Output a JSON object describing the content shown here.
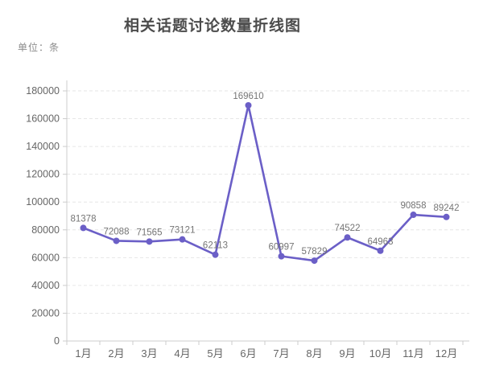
{
  "header": {
    "title": "相关话题讨论数量折线图",
    "unit_label": "单位：条"
  },
  "colors": {
    "line": "#6b5fc7",
    "marker": "#6b5fc7",
    "title_text": "#4c4c4c",
    "unit_text": "#8c8c8c",
    "axis_line": "#cccccc",
    "tick_text": "#666666",
    "grid_line": "#e6e6e6",
    "data_label_text": "#757575",
    "background": "#ffffff"
  },
  "chart_data": {
    "type": "line",
    "title": "相关话题讨论数量折线图",
    "unit": "单位：条",
    "categories": [
      "1月",
      "2月",
      "3月",
      "4月",
      "5月",
      "6月",
      "7月",
      "8月",
      "9月",
      "10月",
      "11月",
      "12月"
    ],
    "series": [
      {
        "name": "相关话题讨论数量",
        "values": [
          81378,
          72088,
          71565,
          73121,
          62113,
          169610,
          60997,
          57829,
          74522,
          64963,
          90858,
          89242
        ]
      }
    ],
    "data_labels_shown": true,
    "xlabel": "",
    "ylabel": "",
    "ylim": [
      0,
      180000
    ],
    "y_tick_step": 20000,
    "y_ticks": [
      0,
      20000,
      40000,
      60000,
      80000,
      100000,
      120000,
      140000,
      160000,
      180000
    ],
    "grid": "horizontal-dashed",
    "legend_position": "none",
    "marker": "circle"
  }
}
